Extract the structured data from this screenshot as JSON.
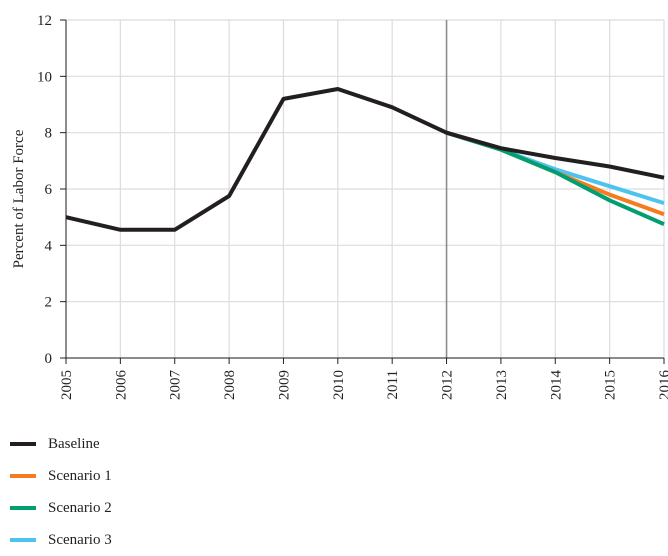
{
  "chart_data": {
    "type": "line",
    "title": "",
    "xlabel": "",
    "ylabel": "Percent of Labor Force",
    "ylim": [
      0,
      12
    ],
    "xlim": [
      2005,
      2016
    ],
    "y_ticks": [
      "0",
      "2",
      "4",
      "6",
      "8",
      "10",
      "12"
    ],
    "x_ticks": [
      "2005",
      "2006",
      "2007",
      "2008",
      "2009",
      "2010",
      "2011",
      "2012",
      "2013",
      "2014",
      "2015",
      "2016"
    ],
    "grid": true,
    "projection_start": 2012,
    "legend_position": "bottom-left",
    "series": [
      {
        "name": "Scenario 3",
        "color": "#4fc3f0",
        "x": [
          2012,
          2013,
          2014,
          2015,
          2016
        ],
        "y": [
          8.0,
          7.4,
          6.7,
          6.1,
          5.5
        ]
      },
      {
        "name": "Scenario 1",
        "color": "#f47b20",
        "x": [
          2012,
          2013,
          2014,
          2015,
          2016
        ],
        "y": [
          8.0,
          7.4,
          6.6,
          5.8,
          5.1
        ]
      },
      {
        "name": "Scenario 2",
        "color": "#009e73",
        "x": [
          2012,
          2013,
          2014,
          2015,
          2016
        ],
        "y": [
          8.0,
          7.4,
          6.6,
          5.6,
          4.75
        ]
      },
      {
        "name": "Baseline",
        "color": "#231f20",
        "x": [
          2005,
          2006,
          2007,
          2008,
          2009,
          2010,
          2011,
          2012,
          2013,
          2014,
          2015,
          2016
        ],
        "y": [
          5.0,
          4.55,
          4.55,
          5.75,
          9.2,
          9.55,
          8.9,
          8.0,
          7.45,
          7.1,
          6.8,
          6.4
        ]
      }
    ],
    "legend": [
      "Baseline",
      "Scenario 1",
      "Scenario 2",
      "Scenario 3"
    ]
  }
}
